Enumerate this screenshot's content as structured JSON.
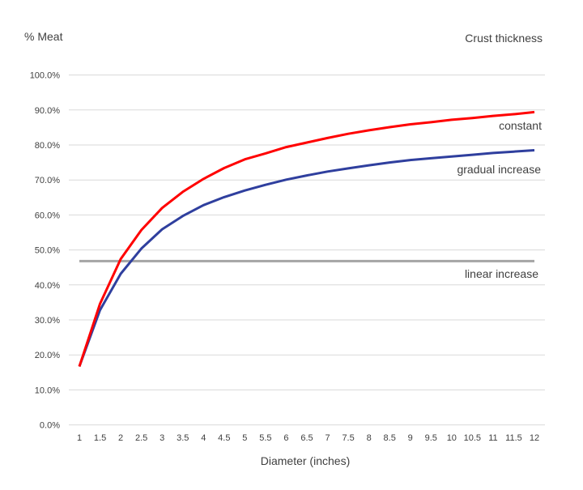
{
  "chart_data": {
    "type": "line",
    "title": "Crust thickness",
    "xlabel": "Diameter (inches)",
    "ylabel": "% Meat",
    "ylim": [
      0,
      100
    ],
    "yticks": [
      "0.0%",
      "10.0%",
      "20.0%",
      "30.0%",
      "40.0%",
      "50.0%",
      "60.0%",
      "70.0%",
      "80.0%",
      "90.0%",
      "100.0%"
    ],
    "grid": "horizontal",
    "legend": "none (inline labels at right end of lines)",
    "categories": [
      "1",
      "1.5",
      "2",
      "2.5",
      "3",
      "3.5",
      "4",
      "4.5",
      "5",
      "5.5",
      "6",
      "6.5",
      "7",
      "7.5",
      "8",
      "8.5",
      "9",
      "9.5",
      "10",
      "10.5",
      "11",
      "11.5",
      "12"
    ],
    "series": [
      {
        "name": "constant",
        "color": "#ff0000",
        "values": [
          16.7,
          34.6,
          47.4,
          55.7,
          62.0,
          66.6,
          70.3,
          73.4,
          75.9,
          77.6,
          79.4,
          80.7,
          82.0,
          83.2,
          84.2,
          85.1,
          85.9,
          86.5,
          87.2,
          87.7,
          88.3,
          88.8,
          89.4
        ]
      },
      {
        "name": "gradual increase",
        "color": "#2f3f9e",
        "values": [
          16.7,
          32.8,
          43.2,
          50.4,
          55.9,
          59.7,
          62.8,
          65.1,
          67.0,
          68.6,
          70.1,
          71.3,
          72.4,
          73.3,
          74.2,
          75.0,
          75.7,
          76.2,
          76.7,
          77.2,
          77.7,
          78.1,
          78.5
        ]
      },
      {
        "name": "linear increase",
        "color": "#a5a5a5",
        "values": [
          46.8,
          46.8,
          46.8,
          46.8,
          46.8,
          46.8,
          46.8,
          46.8,
          46.8,
          46.8,
          46.8,
          46.8,
          46.8,
          46.8,
          46.8,
          46.8,
          46.8,
          46.8,
          46.8,
          46.8,
          46.8,
          46.8,
          46.8
        ]
      }
    ]
  }
}
